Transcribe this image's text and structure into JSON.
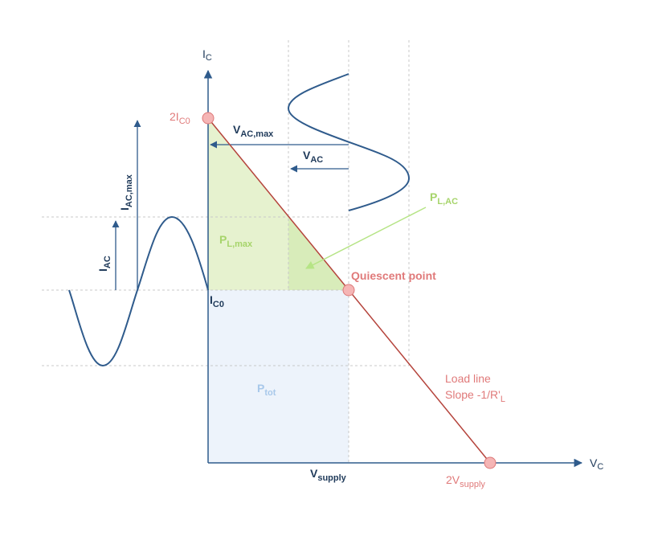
{
  "labels": {
    "ic_axis": {
      "main": "I",
      "sub": "C"
    },
    "vc_axis": {
      "main": "V",
      "sub": "C"
    },
    "two_ic0": {
      "pre": "2I",
      "sub": "C0"
    },
    "ic0": {
      "main": "I",
      "sub": "C0"
    },
    "vac_max": {
      "main": "V",
      "sub": "AC,max"
    },
    "vac": {
      "main": "V",
      "sub": "AC"
    },
    "iac_max": {
      "main": "I",
      "sub": "AC,max"
    },
    "iac": {
      "main": "I",
      "sub": "AC"
    },
    "pl_ac": {
      "main": "P",
      "sub": "L,AC"
    },
    "pl_max": {
      "main": "P",
      "sub": "L,max"
    },
    "ptot": {
      "main": "P",
      "sub": "tot"
    },
    "quiescent": "Quiescent point",
    "load_line": "Load line",
    "slope": {
      "pre": "Slope -1/R'",
      "sub": "L"
    },
    "vsupply": {
      "main": "V",
      "sub": "supply"
    },
    "two_vsupply": {
      "pre": "2V",
      "sub": "supply"
    }
  },
  "colors": {
    "axis": "#2f5b8c",
    "load_line": "#b5443c",
    "points": "#f5b5b5",
    "pl_max_fill": "#e6f2cf",
    "pl_ac_fill": "#d8ecba",
    "ptot_fill": "#edf3fb",
    "arrow_green": "#b6e486",
    "grid": "#c8c8c8"
  }
}
